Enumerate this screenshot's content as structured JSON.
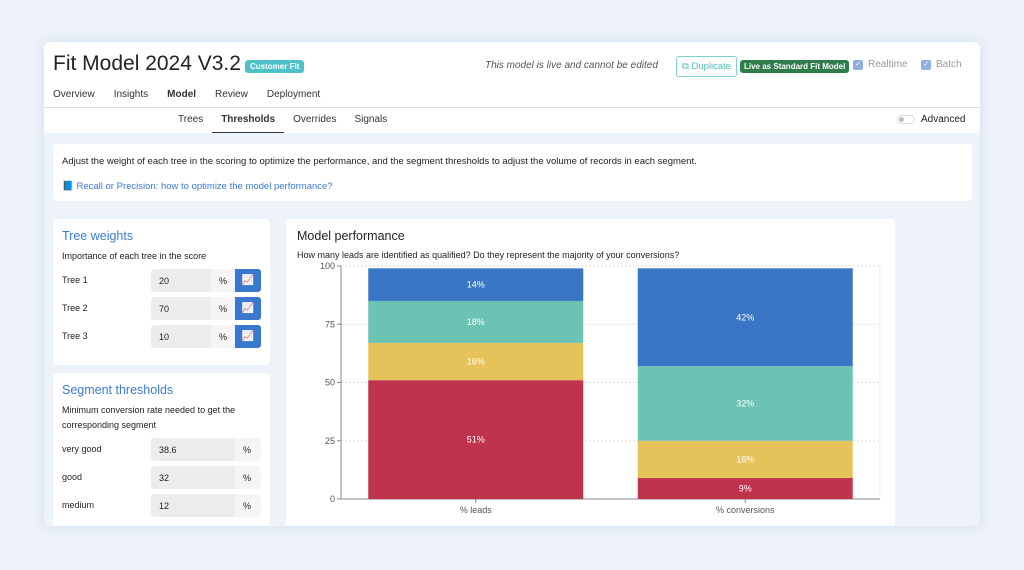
{
  "header": {
    "title": "Fit Model 2024 V3.2",
    "badge": "Customer Fit",
    "live_note": "This model is live and cannot be edited",
    "duplicate_label": "Duplicate",
    "live_badge": "Live as Standard Fit Model",
    "realtime_label": "Realtime",
    "batch_label": "Batch",
    "realtime_checked": true,
    "batch_checked": true
  },
  "tabs": [
    {
      "label": "Overview"
    },
    {
      "label": "Insights"
    },
    {
      "label": "Model",
      "active": true
    },
    {
      "label": "Review"
    },
    {
      "label": "Deployment"
    }
  ],
  "subtabs": [
    {
      "label": "Trees"
    },
    {
      "label": "Thresholds",
      "active": true
    },
    {
      "label": "Overrides"
    },
    {
      "label": "Signals"
    }
  ],
  "advanced": {
    "label": "Advanced",
    "on": false
  },
  "intro": {
    "text": "Adjust the weight of each tree in the scoring to optimize the performance, and the segment thresholds to adjust the volume of records in each segment.",
    "link": "Recall or Precision: how to optimize the model performance?"
  },
  "tree_weights": {
    "title": "Tree weights",
    "subtitle": "Importance of each tree in the score",
    "unit": "%",
    "rows": [
      {
        "label": "Tree 1",
        "value": "20"
      },
      {
        "label": "Tree 2",
        "value": "70"
      },
      {
        "label": "Tree 3",
        "value": "10"
      }
    ]
  },
  "segment_thresholds": {
    "title": "Segment thresholds",
    "subtitle": "Minimum conversion rate needed to get the corresponding segment",
    "unit": "%",
    "rows": [
      {
        "label": "very good",
        "value": "38.6"
      },
      {
        "label": "good",
        "value": "32"
      },
      {
        "label": "medium",
        "value": "12"
      }
    ]
  },
  "performance": {
    "title": "Model performance",
    "subtitle": "How many leads are identified as qualified? Do they represent the majority of your conversions?"
  },
  "chart_data": {
    "type": "bar",
    "stacked": true,
    "categories": [
      "% leads",
      "% conversions"
    ],
    "ylim": [
      0,
      100
    ],
    "yticks": [
      0,
      25,
      50,
      75,
      100
    ],
    "grid": true,
    "series": [
      {
        "color": "#c0334e",
        "values": [
          51,
          9
        ]
      },
      {
        "color": "#e6c35a",
        "values": [
          16,
          16
        ]
      },
      {
        "color": "#6cc3b4",
        "values": [
          18,
          32
        ]
      },
      {
        "color": "#3a76c6",
        "values": [
          14,
          42
        ]
      }
    ]
  }
}
